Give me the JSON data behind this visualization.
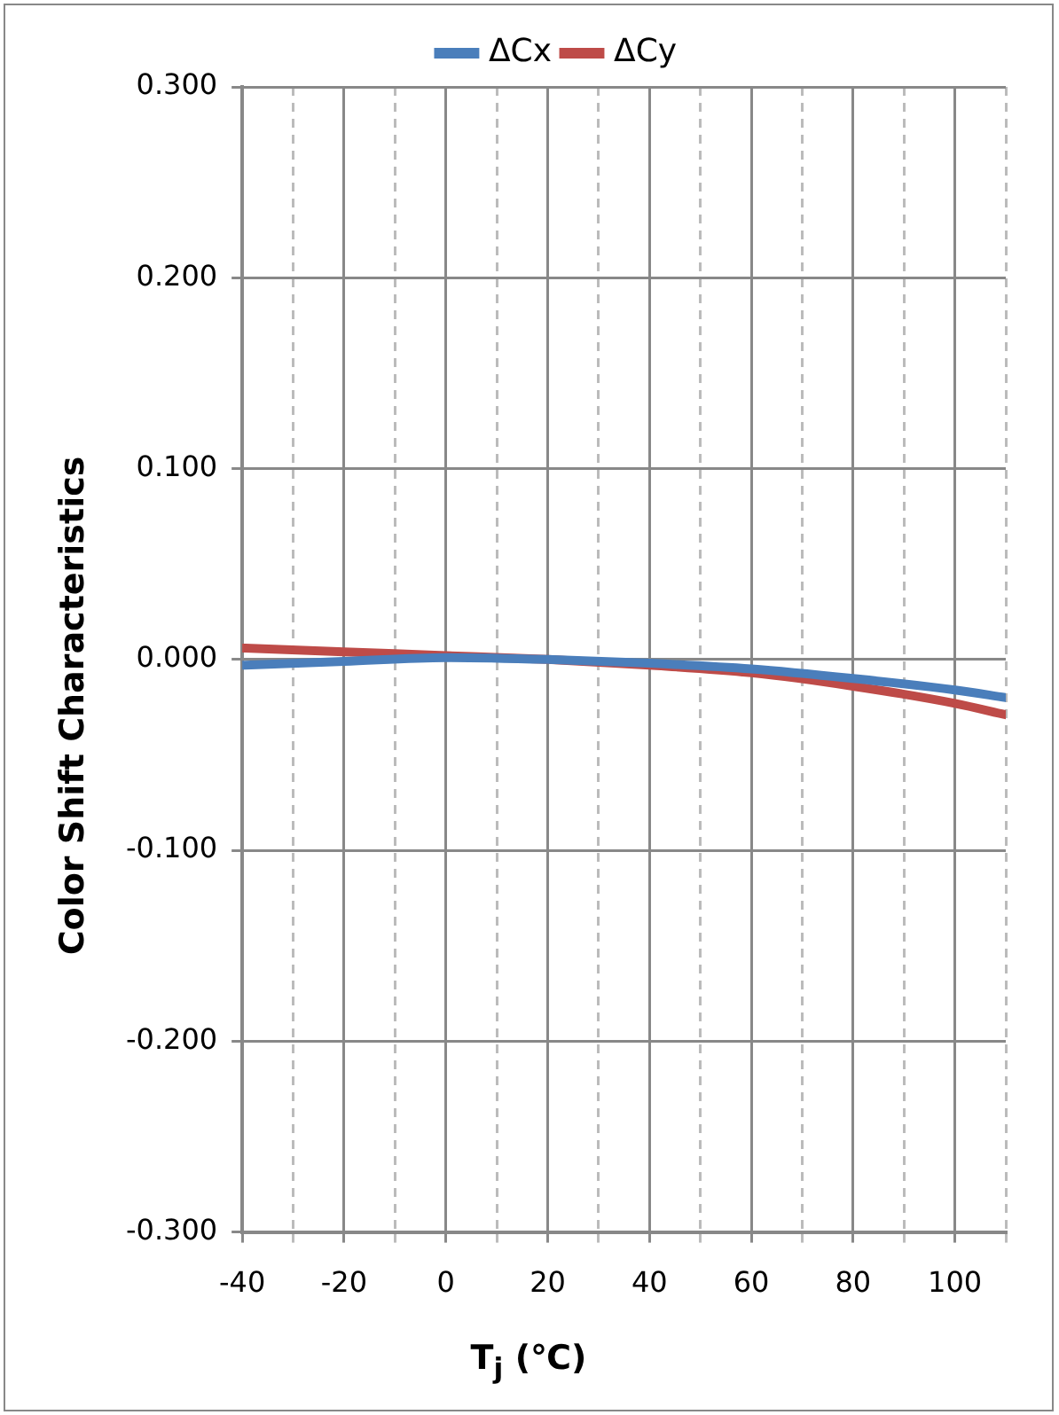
{
  "chart_data": {
    "type": "line",
    "xlabel": "T$_{j}$ (℃)",
    "ylabel": "Color Shift Characteristics",
    "x": [
      -40,
      -20,
      0,
      20,
      40,
      60,
      80,
      100,
      110
    ],
    "series": [
      {
        "name": "ΔCx",
        "color": "#4a7ebb",
        "values": [
          -0.003,
          -0.001,
          0.001,
          0.0,
          -0.002,
          -0.005,
          -0.01,
          -0.016,
          -0.02
        ]
      },
      {
        "name": "ΔCy",
        "color": "#be4b48",
        "values": [
          0.006,
          0.004,
          0.002,
          0.0,
          -0.003,
          -0.007,
          -0.014,
          -0.023,
          -0.029
        ]
      }
    ],
    "xlim": [
      -40,
      110
    ],
    "xticks": [
      -40,
      {
        "value": -30,
        "label": null
      },
      -20,
      {
        "value": -10,
        "label": null
      },
      0,
      {
        "value": 10,
        "label": null
      },
      20,
      {
        "value": 30,
        "label": null
      },
      40,
      {
        "value": 50,
        "label": null
      },
      60,
      {
        "value": 70,
        "label": null
      },
      80,
      {
        "value": 90,
        "label": null
      },
      100,
      {
        "value": 110,
        "label": null
      }
    ],
    "ylim": [
      -0.3,
      0.3
    ],
    "yticks": [
      {
        "value": -0.3,
        "label": "-0.300"
      },
      {
        "value": -0.2,
        "label": "-0.200"
      },
      {
        "value": -0.1,
        "label": "-0.100"
      },
      {
        "value": 0,
        "label": "0.000"
      },
      {
        "value": 0.1,
        "label": "0.100"
      },
      {
        "value": 0.2,
        "label": "0.200"
      },
      {
        "value": 0.3,
        "label": "0.300"
      }
    ],
    "grid": true,
    "legend": "top",
    "marker": "none",
    "line_style": "solid"
  }
}
